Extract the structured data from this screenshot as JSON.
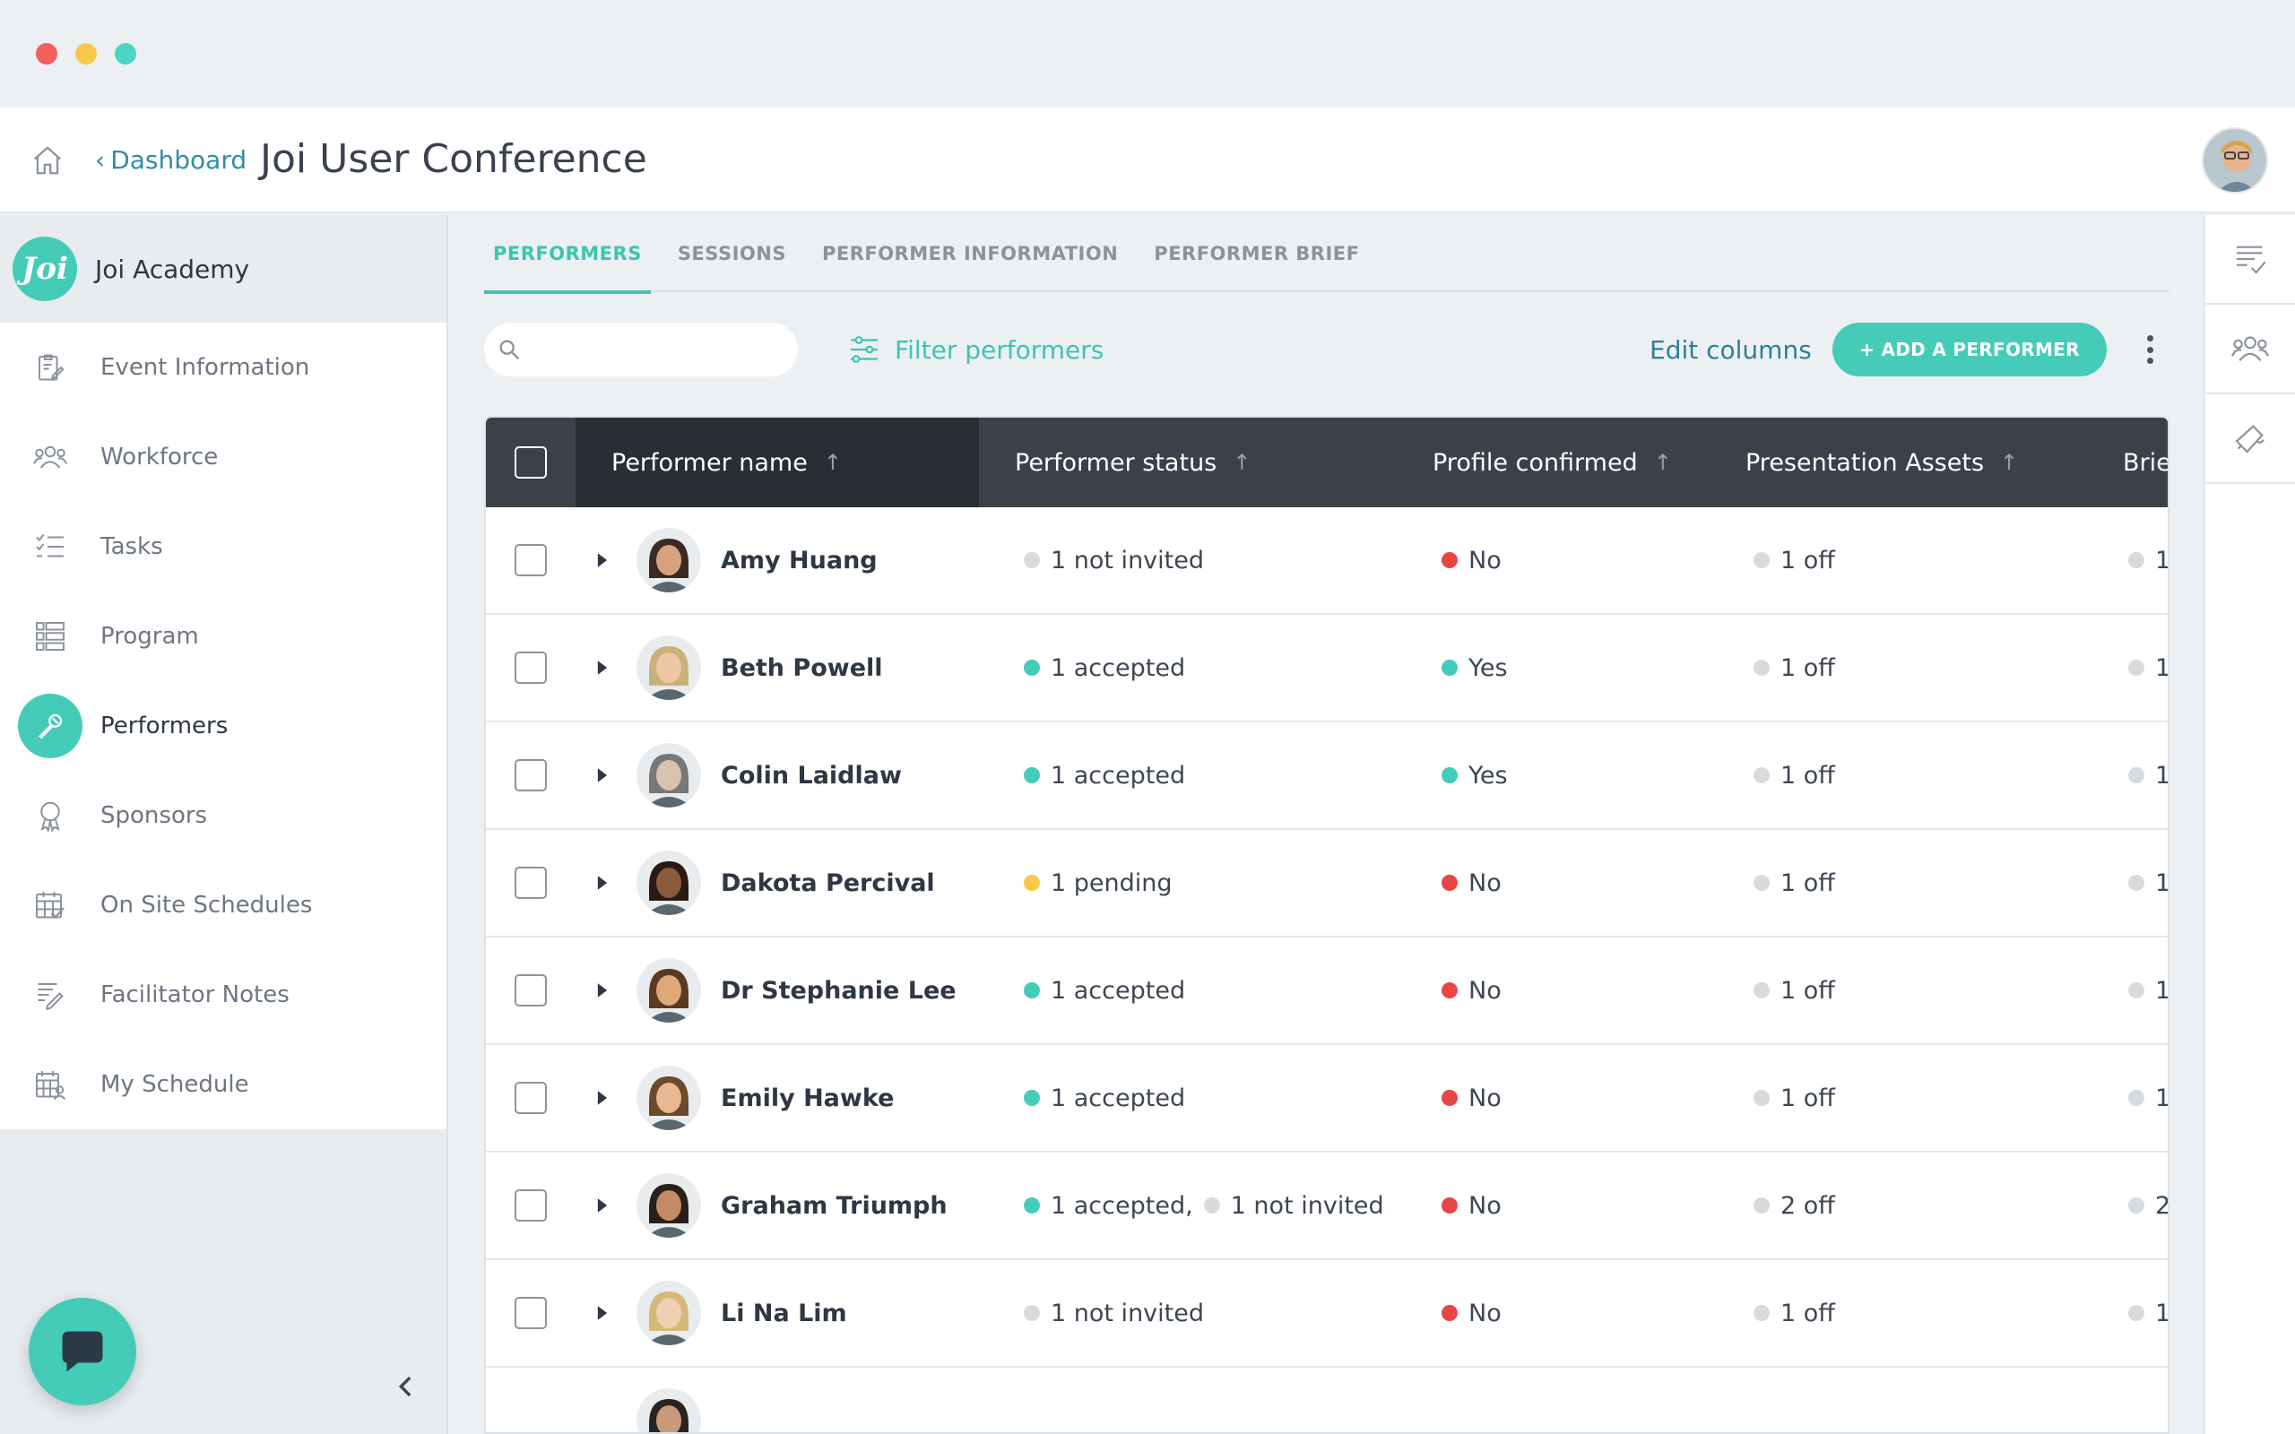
{
  "header": {
    "breadcrumb_chevron": "‹",
    "breadcrumb_label": "Dashboard",
    "title": "Joi User Conference"
  },
  "sidebar": {
    "org_logo_text": "Joi",
    "org_name": "Joi Academy",
    "items": [
      {
        "label": "Event Information",
        "icon": "clipboard-edit-icon"
      },
      {
        "label": "Workforce",
        "icon": "users-icon"
      },
      {
        "label": "Tasks",
        "icon": "checklist-icon"
      },
      {
        "label": "Program",
        "icon": "list-icon"
      },
      {
        "label": "Performers",
        "icon": "microphone-icon",
        "active": true
      },
      {
        "label": "Sponsors",
        "icon": "ribbon-badge-icon"
      },
      {
        "label": "On Site Schedules",
        "icon": "calendar-check-icon"
      },
      {
        "label": "Facilitator Notes",
        "icon": "note-pencil-icon"
      },
      {
        "label": "My Schedule",
        "icon": "calendar-user-icon"
      }
    ]
  },
  "tabs": [
    {
      "label": "PERFORMERS",
      "active": true
    },
    {
      "label": "SESSIONS"
    },
    {
      "label": "PERFORMER INFORMATION"
    },
    {
      "label": "PERFORMER BRIEF"
    }
  ],
  "toolbar": {
    "search_placeholder": "",
    "filter_label": "Filter performers",
    "edit_columns_label": "Edit columns",
    "add_button_label": "+ ADD A PERFORMER"
  },
  "table": {
    "columns": {
      "name": "Performer name",
      "status": "Performer status",
      "profile": "Profile confirmed",
      "assets": "Presentation Assets",
      "brief": "Brief"
    },
    "sort_arrow": "↑",
    "rows": [
      {
        "name": "Amy Huang",
        "status": [
          {
            "text": "1 not invited",
            "color": "gray"
          }
        ],
        "profile": {
          "text": "No",
          "color": "red"
        },
        "assets": "1 off",
        "brief": "1"
      },
      {
        "name": "Beth Powell",
        "status": [
          {
            "text": "1 accepted",
            "color": "teal"
          }
        ],
        "profile": {
          "text": "Yes",
          "color": "teal"
        },
        "assets": "1 off",
        "brief": "1"
      },
      {
        "name": "Colin Laidlaw",
        "status": [
          {
            "text": "1 accepted",
            "color": "teal"
          }
        ],
        "profile": {
          "text": "Yes",
          "color": "teal"
        },
        "assets": "1 off",
        "brief": "1"
      },
      {
        "name": "Dakota Percival",
        "status": [
          {
            "text": "1 pending",
            "color": "yellow"
          }
        ],
        "profile": {
          "text": "No",
          "color": "red"
        },
        "assets": "1 off",
        "brief": "1"
      },
      {
        "name": "Dr Stephanie Lee",
        "status": [
          {
            "text": "1 accepted",
            "color": "teal"
          }
        ],
        "profile": {
          "text": "No",
          "color": "red"
        },
        "assets": "1 off",
        "brief": "1"
      },
      {
        "name": "Emily Hawke",
        "status": [
          {
            "text": "1 accepted",
            "color": "teal"
          }
        ],
        "profile": {
          "text": "No",
          "color": "red"
        },
        "assets": "1 off",
        "brief": "1"
      },
      {
        "name": "Graham Triumph",
        "status": [
          {
            "text": "1 accepted,",
            "color": "teal"
          },
          {
            "text": "1 not invited",
            "color": "gray"
          }
        ],
        "profile": {
          "text": "No",
          "color": "red"
        },
        "assets": "2 off",
        "brief": "2"
      },
      {
        "name": "Li Na Lim",
        "status": [
          {
            "text": "1 not invited",
            "color": "gray"
          }
        ],
        "profile": {
          "text": "No",
          "color": "red"
        },
        "assets": "1 off",
        "brief": "1"
      }
    ]
  },
  "colors": {
    "accent": "#44ccb8",
    "link": "#2e8fa6",
    "header_dark": "#3b4049",
    "status_red": "#e94545",
    "status_yellow": "#f7c948",
    "status_gray": "#d8dbde"
  }
}
